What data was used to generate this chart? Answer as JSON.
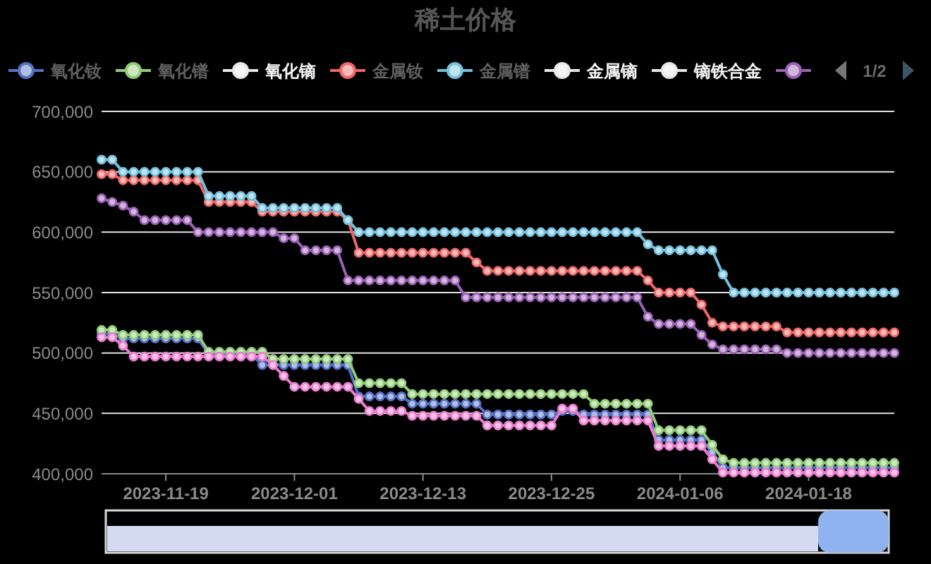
{
  "chart_data": {
    "type": "line",
    "title": "稀土价格",
    "x": [
      "2023-11-13",
      "2023-11-14",
      "2023-11-15",
      "2023-11-16",
      "2023-11-17",
      "2023-11-18",
      "2023-11-19",
      "2023-11-20",
      "2023-11-21",
      "2023-11-22",
      "2023-11-23",
      "2023-11-24",
      "2023-11-25",
      "2023-11-26",
      "2023-11-27",
      "2023-11-28",
      "2023-11-29",
      "2023-11-30",
      "2023-12-01",
      "2023-12-02",
      "2023-12-03",
      "2023-12-04",
      "2023-12-05",
      "2023-12-06",
      "2023-12-07",
      "2023-12-08",
      "2023-12-09",
      "2023-12-10",
      "2023-12-11",
      "2023-12-12",
      "2023-12-13",
      "2023-12-14",
      "2023-12-15",
      "2023-12-16",
      "2023-12-17",
      "2023-12-18",
      "2023-12-19",
      "2023-12-20",
      "2023-12-21",
      "2023-12-22",
      "2023-12-23",
      "2023-12-24",
      "2023-12-25",
      "2023-12-26",
      "2023-12-27",
      "2023-12-28",
      "2023-12-29",
      "2023-12-30",
      "2023-12-31",
      "2024-01-01",
      "2024-01-02",
      "2024-01-03",
      "2024-01-04",
      "2024-01-05",
      "2024-01-06",
      "2024-01-07",
      "2024-01-08",
      "2024-01-09",
      "2024-01-10",
      "2024-01-11",
      "2024-01-12",
      "2024-01-13",
      "2024-01-14",
      "2024-01-15",
      "2024-01-16",
      "2024-01-17",
      "2024-01-18",
      "2024-01-19",
      "2024-01-20",
      "2024-01-21",
      "2024-01-22",
      "2024-01-23",
      "2024-01-24",
      "2024-01-25",
      "2024-01-26"
    ],
    "xlim": [
      "2023-11-13",
      "2024-01-26"
    ],
    "xticks": [
      "2023-11-19",
      "2023-12-01",
      "2023-12-13",
      "2023-12-25",
      "2024-01-06",
      "2024-01-18"
    ],
    "ylim": [
      400000,
      700000
    ],
    "yticks": [
      {
        "value": 400000,
        "label": "400,000"
      },
      {
        "value": 450000,
        "label": "450,000"
      },
      {
        "value": 500000,
        "label": "500,000"
      },
      {
        "value": 550000,
        "label": "550,000"
      },
      {
        "value": 600000,
        "label": "600,000"
      },
      {
        "value": 650000,
        "label": "650,000"
      },
      {
        "value": 700000,
        "label": "700,000"
      }
    ],
    "grid": "y",
    "legend": "top",
    "marker": "circle",
    "line_style": "solid",
    "annotations": [
      "1/2"
    ],
    "series": [
      {
        "name": "氧化钕",
        "color": "#5470c6",
        "values": [
          516000,
          516000,
          512000,
          512000,
          512000,
          512000,
          512000,
          512000,
          512000,
          512000,
          499000,
          499000,
          499000,
          499000,
          499000,
          490000,
          490000,
          490000,
          490000,
          490000,
          490000,
          490000,
          490000,
          490000,
          464000,
          464000,
          464000,
          464000,
          464000,
          458000,
          458000,
          458000,
          458000,
          458000,
          458000,
          458000,
          449000,
          449000,
          449000,
          449000,
          449000,
          449000,
          449000,
          452000,
          452000,
          449000,
          449000,
          449000,
          449000,
          449000,
          449000,
          449000,
          428000,
          428000,
          428000,
          428000,
          428000,
          418000,
          405000,
          405000,
          405000,
          405000,
          405000,
          405000,
          405000,
          405000,
          405000,
          405000,
          405000,
          405000,
          405000,
          405000,
          405000,
          405000,
          405000
        ]
      },
      {
        "name": "氧化镨",
        "color": "#91cc75",
        "values": [
          519000,
          519000,
          515000,
          515000,
          515000,
          515000,
          515000,
          515000,
          515000,
          515000,
          501000,
          501000,
          501000,
          501000,
          501000,
          501000,
          495000,
          495000,
          495000,
          495000,
          495000,
          495000,
          495000,
          495000,
          475000,
          475000,
          475000,
          475000,
          475000,
          466000,
          466000,
          466000,
          466000,
          466000,
          466000,
          466000,
          466000,
          466000,
          466000,
          466000,
          466000,
          466000,
          466000,
          466000,
          466000,
          466000,
          458000,
          458000,
          458000,
          458000,
          458000,
          458000,
          436000,
          436000,
          436000,
          436000,
          436000,
          424000,
          412000,
          409000,
          409000,
          409000,
          409000,
          409000,
          409000,
          409000,
          409000,
          409000,
          409000,
          409000,
          409000,
          409000,
          409000,
          409000,
          409000
        ]
      },
      {
        "name": "氧化镝",
        "color": "#e8e8e8",
        "values": [
          null,
          null,
          null,
          null,
          null,
          null,
          null,
          null,
          null,
          null,
          null,
          null,
          null,
          null,
          null,
          null,
          null,
          null,
          null,
          null,
          null,
          null,
          null,
          null,
          null,
          null,
          null,
          null,
          null,
          null,
          null,
          null,
          null,
          null,
          null,
          null,
          null,
          null,
          null,
          null,
          null,
          null,
          null,
          null,
          null,
          null,
          null,
          null,
          null,
          null,
          null,
          null,
          null,
          null,
          null,
          null,
          null,
          null,
          null,
          null,
          null,
          null,
          null,
          null,
          null,
          null,
          null,
          null,
          null,
          null,
          null,
          null,
          null,
          null,
          null
        ]
      },
      {
        "name": "金属钕",
        "color": "#ee6666",
        "values": [
          648000,
          648000,
          643000,
          643000,
          643000,
          643000,
          643000,
          643000,
          643000,
          643000,
          625000,
          625000,
          625000,
          625000,
          625000,
          617000,
          617000,
          617000,
          617000,
          617000,
          617000,
          617000,
          617000,
          610000,
          583000,
          583000,
          583000,
          583000,
          583000,
          583000,
          583000,
          583000,
          583000,
          583000,
          583000,
          575000,
          568000,
          568000,
          568000,
          568000,
          568000,
          568000,
          568000,
          568000,
          568000,
          568000,
          568000,
          568000,
          568000,
          568000,
          568000,
          560000,
          550000,
          550000,
          550000,
          550000,
          540000,
          525000,
          522000,
          522000,
          522000,
          522000,
          522000,
          522000,
          517000,
          517000,
          517000,
          517000,
          517000,
          517000,
          517000,
          517000,
          517000,
          517000,
          517000
        ]
      },
      {
        "name": "金属镨",
        "color": "#73c0de",
        "values": [
          660000,
          660000,
          650000,
          650000,
          650000,
          650000,
          650000,
          650000,
          650000,
          650000,
          630000,
          630000,
          630000,
          630000,
          630000,
          620000,
          620000,
          620000,
          620000,
          620000,
          620000,
          620000,
          620000,
          610000,
          600000,
          600000,
          600000,
          600000,
          600000,
          600000,
          600000,
          600000,
          600000,
          600000,
          600000,
          600000,
          600000,
          600000,
          600000,
          600000,
          600000,
          600000,
          600000,
          600000,
          600000,
          600000,
          600000,
          600000,
          600000,
          600000,
          600000,
          590000,
          585000,
          585000,
          585000,
          585000,
          585000,
          585000,
          565000,
          550000,
          550000,
          550000,
          550000,
          550000,
          550000,
          550000,
          550000,
          550000,
          550000,
          550000,
          550000,
          550000,
          550000,
          550000,
          550000
        ]
      },
      {
        "name": "金属镝",
        "color": "#e8e8e8",
        "values": [
          null,
          null,
          null,
          null,
          null,
          null,
          null,
          null,
          null,
          null,
          null,
          null,
          null,
          null,
          null,
          null,
          null,
          null,
          null,
          null,
          null,
          null,
          null,
          null,
          null,
          null,
          null,
          null,
          null,
          null,
          null,
          null,
          null,
          null,
          null,
          null,
          null,
          null,
          null,
          null,
          null,
          null,
          null,
          null,
          null,
          null,
          null,
          null,
          null,
          null,
          null,
          null,
          null,
          null,
          null,
          null,
          null,
          null,
          null,
          null,
          null,
          null,
          null,
          null,
          null,
          null,
          null,
          null,
          null,
          null,
          null,
          null,
          null,
          null,
          null
        ]
      },
      {
        "name": "镝铁合金",
        "color": "#e8e8e8",
        "values": [
          null,
          null,
          null,
          null,
          null,
          null,
          null,
          null,
          null,
          null,
          null,
          null,
          null,
          null,
          null,
          null,
          null,
          null,
          null,
          null,
          null,
          null,
          null,
          null,
          null,
          null,
          null,
          null,
          null,
          null,
          null,
          null,
          null,
          null,
          null,
          null,
          null,
          null,
          null,
          null,
          null,
          null,
          null,
          null,
          null,
          null,
          null,
          null,
          null,
          null,
          null,
          null,
          null,
          null,
          null,
          null,
          null,
          null,
          null,
          null,
          null,
          null,
          null,
          null,
          null,
          null,
          null,
          null,
          null,
          null,
          null,
          null,
          null,
          null,
          null
        ]
      },
      {
        "color": "#9a60b4",
        "values": [
          628000,
          625000,
          622000,
          617000,
          610000,
          610000,
          610000,
          610000,
          610000,
          600000,
          600000,
          600000,
          600000,
          600000,
          600000,
          600000,
          600000,
          595000,
          595000,
          585000,
          585000,
          585000,
          585000,
          560000,
          560000,
          560000,
          560000,
          560000,
          560000,
          560000,
          560000,
          560000,
          560000,
          560000,
          546000,
          546000,
          546000,
          546000,
          546000,
          546000,
          546000,
          546000,
          546000,
          546000,
          546000,
          546000,
          546000,
          546000,
          546000,
          546000,
          546000,
          530000,
          524000,
          524000,
          524000,
          524000,
          515000,
          507000,
          503000,
          503000,
          503000,
          503000,
          503000,
          503000,
          500000,
          500000,
          500000,
          500000,
          500000,
          500000,
          500000,
          500000,
          500000,
          500000,
          500000
        ]
      },
      {
        "color": "#ea7ccc",
        "values": [
          513000,
          513000,
          506000,
          497000,
          497000,
          497000,
          497000,
          497000,
          497000,
          497000,
          497000,
          497000,
          497000,
          497000,
          497000,
          497000,
          490000,
          481000,
          472000,
          472000,
          472000,
          472000,
          472000,
          472000,
          462000,
          452000,
          452000,
          452000,
          452000,
          448000,
          448000,
          448000,
          448000,
          448000,
          448000,
          448000,
          440000,
          440000,
          440000,
          440000,
          440000,
          440000,
          440000,
          454000,
          454000,
          444000,
          444000,
          444000,
          444000,
          444000,
          444000,
          444000,
          423000,
          423000,
          423000,
          423000,
          423000,
          412000,
          401000,
          401000,
          401000,
          401000,
          401000,
          401000,
          401000,
          401000,
          401000,
          401000,
          401000,
          401000,
          401000,
          401000,
          401000,
          401000,
          401000
        ]
      }
    ]
  }
}
